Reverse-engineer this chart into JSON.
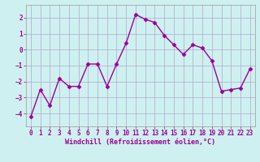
{
  "x": [
    0,
    1,
    2,
    3,
    4,
    5,
    6,
    7,
    8,
    9,
    10,
    11,
    12,
    13,
    14,
    15,
    16,
    17,
    18,
    19,
    20,
    21,
    22,
    23
  ],
  "y": [
    -4.2,
    -2.5,
    -3.5,
    -1.8,
    -2.3,
    -2.3,
    -0.9,
    -0.9,
    -2.3,
    -0.9,
    0.4,
    2.2,
    1.9,
    1.7,
    0.9,
    0.3,
    -0.3,
    0.3,
    0.1,
    -0.7,
    -2.6,
    -2.5,
    -2.4,
    -1.2
  ],
  "line_color": "#990099",
  "marker": "D",
  "markersize": 2.5,
  "linewidth": 1.0,
  "bg_color": "#cff0f0",
  "grid_color": "#aaaacc",
  "xlabel": "Windchill (Refroidissement éolien,°C)",
  "xlabel_fontsize": 6.0,
  "tick_fontsize": 5.5,
  "ylim": [
    -4.8,
    2.8
  ],
  "yticks": [
    -4,
    -3,
    -2,
    -1,
    0,
    1,
    2
  ],
  "xticks": [
    0,
    1,
    2,
    3,
    4,
    5,
    6,
    7,
    8,
    9,
    10,
    11,
    12,
    13,
    14,
    15,
    16,
    17,
    18,
    19,
    20,
    21,
    22,
    23
  ]
}
